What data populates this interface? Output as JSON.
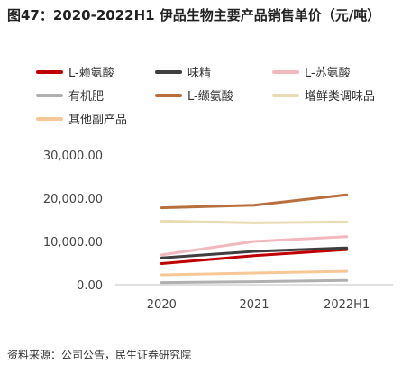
{
  "title": "图47：2020-2022H1 伊品生物主要产品销售单价（元/吨）",
  "source": "资料来源：公司公告，民生证券研究院",
  "chart_data": {
    "type": "line",
    "categories": [
      "2020",
      "2021",
      "2022H1"
    ],
    "ylim": [
      0,
      30000
    ],
    "yticks": [
      0,
      10000,
      20000,
      30000
    ],
    "ytick_labels": [
      "0.00",
      "10,000.00",
      "20,000.00",
      "30,000.00"
    ],
    "legend_position": "top",
    "grid": false,
    "series": [
      {
        "name": "L-赖氨酸",
        "color": "#c00000",
        "values": [
          4900,
          6700,
          8100
        ]
      },
      {
        "name": "味精",
        "color": "#3f3f3f",
        "values": [
          6200,
          7700,
          8500
        ]
      },
      {
        "name": "L-苏氨酸",
        "color": "#f2b8bf",
        "values": [
          6900,
          10000,
          11100
        ]
      },
      {
        "name": "有机肥",
        "color": "#b0b0b0",
        "values": [
          500,
          700,
          1000
        ]
      },
      {
        "name": "L-缬氨酸",
        "color": "#b86f3e",
        "values": [
          17800,
          18400,
          20800
        ]
      },
      {
        "name": "增鲜类调味品",
        "color": "#e8dcb5",
        "values": [
          14700,
          14300,
          14500
        ]
      },
      {
        "name": "其他副产品",
        "color": "#f7c896",
        "values": [
          2300,
          2700,
          3100
        ]
      }
    ]
  }
}
